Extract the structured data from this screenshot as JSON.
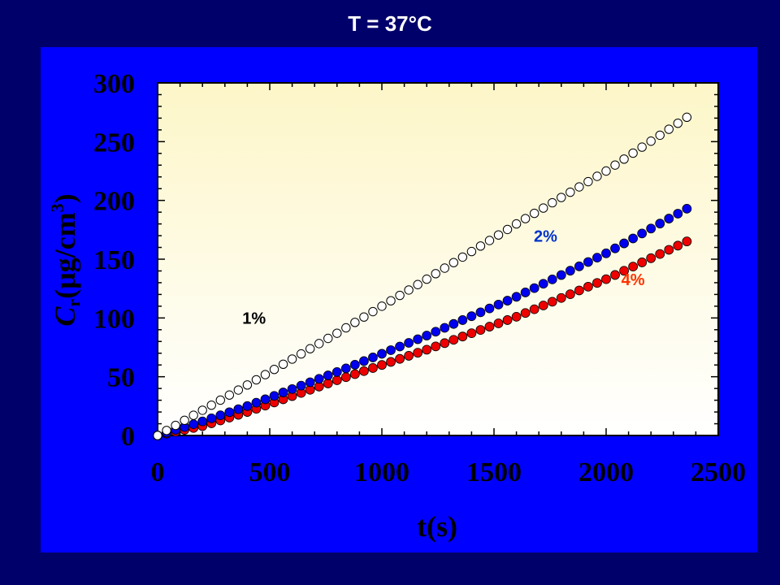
{
  "header": {
    "title": "T = 37°C"
  },
  "colors": {
    "background": "#00006b",
    "panel": "#0000ff",
    "series_1": "#ffffff",
    "series_2": "#0000ee",
    "series_4": "#ee0000",
    "label_2": "#0033cc",
    "label_4": "#ff3300"
  },
  "chart_data": {
    "type": "scatter",
    "title": "T = 37°C",
    "xlabel": "t(s)",
    "ylabel": "Cr(μg/cm3)",
    "ylabel_parts": {
      "main": "C",
      "sub": "r",
      "unit": "(μg/cm",
      "sup": "3",
      "close": ")"
    },
    "xlim": [
      0,
      2500
    ],
    "ylim": [
      0,
      300
    ],
    "x_ticks": [
      0,
      500,
      1000,
      1500,
      2000,
      2500
    ],
    "y_ticks": [
      0,
      50,
      100,
      150,
      200,
      250,
      300
    ],
    "x_tick_labels": [
      "0",
      "500",
      "1000",
      "1500",
      "2000",
      "2500"
    ],
    "y_tick_labels": [
      "0",
      "50",
      "100",
      "150",
      "200",
      "250",
      "300"
    ],
    "grid": false,
    "series": [
      {
        "name": "1%",
        "marker": "open-circle",
        "color": "#ffffff",
        "x": [
          0,
          400,
          800,
          1200,
          1600,
          2000,
          2370
        ],
        "y": [
          0,
          43,
          87,
          133,
          180,
          225,
          272
        ],
        "label_at": [
          430,
          95
        ]
      },
      {
        "name": "2%",
        "marker": "filled-circle",
        "color": "#0000ee",
        "x": [
          0,
          200,
          400,
          800,
          1200,
          1600,
          2000,
          2370
        ],
        "y": [
          0,
          12,
          25,
          54,
          85,
          118,
          155,
          194
        ],
        "label_at": [
          1730,
          165
        ]
      },
      {
        "name": "4%",
        "marker": "filled-circle",
        "color": "#ee0000",
        "x": [
          0,
          200,
          400,
          800,
          1200,
          1600,
          2000,
          2370
        ],
        "y": [
          0,
          8,
          20,
          47,
          73,
          101,
          133,
          166
        ],
        "label_at": [
          2120,
          128
        ]
      }
    ]
  }
}
